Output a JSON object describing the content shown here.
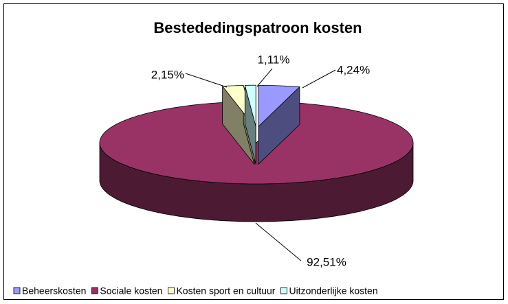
{
  "chart_data": {
    "type": "pie",
    "title": "Bestededingspatroon kosten",
    "categories": [
      "Beheerskosten",
      "Sociale kosten",
      "Kosten sport en cultuur",
      "Uitzonderlijke kosten"
    ],
    "values": [
      4.24,
      92.51,
      2.15,
      1.11
    ],
    "value_labels": [
      "4,24%",
      "92,51%",
      "2,15%",
      "1,11%"
    ],
    "colors": [
      "#9999FF",
      "#993366",
      "#FFFFCC",
      "#CCFFFF"
    ],
    "legend": "bottom"
  }
}
